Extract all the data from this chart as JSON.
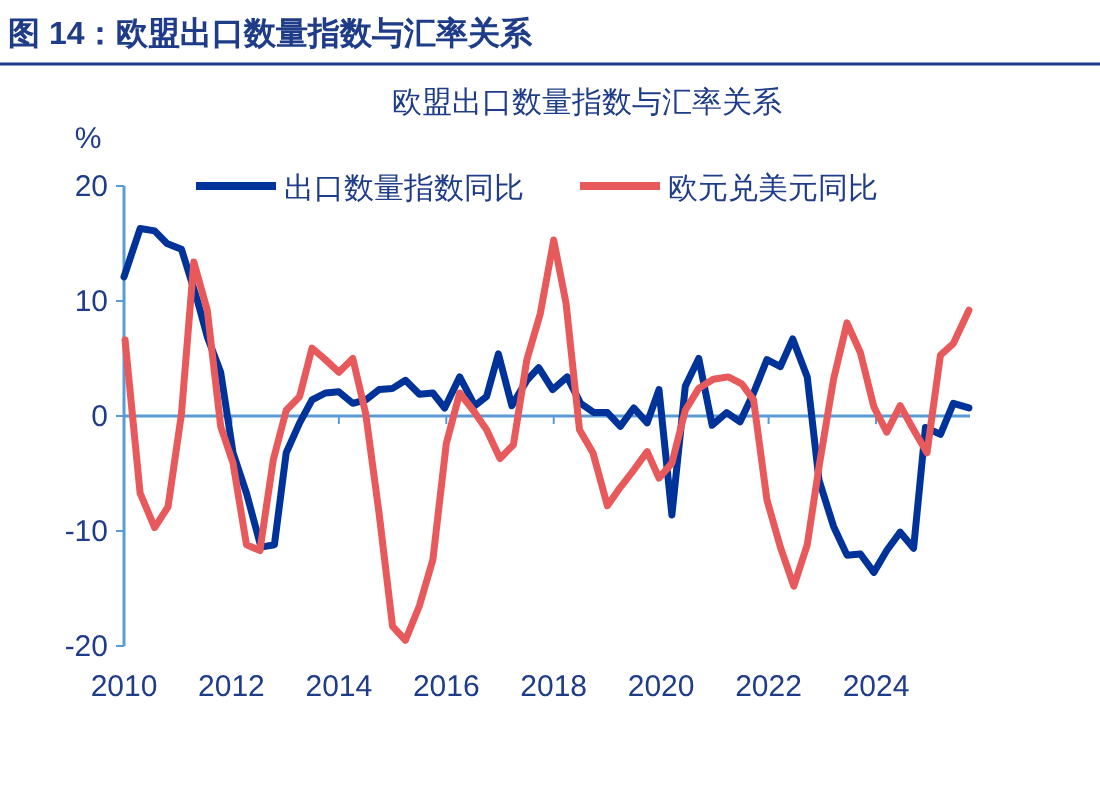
{
  "chart_data": {
    "type": "line",
    "title": "图 14：欧盟出口数量指数与汇率关系",
    "subtitle": "欧盟出口数量指数与汇率关系",
    "ylabel": "%",
    "xlim": [
      2010,
      2025.75
    ],
    "xticks": [
      2010,
      2012,
      2014,
      2016,
      2018,
      2020,
      2022,
      2024
    ],
    "ylim": [
      -20,
      20
    ],
    "yticks": [
      -20,
      -10,
      0,
      10,
      20
    ],
    "grid": false,
    "ref_lines": [
      {
        "axis": "y",
        "value": 0,
        "color": "#5b9bd5"
      }
    ],
    "legend": "top",
    "marker": "none",
    "line_style": "solid",
    "series": [
      {
        "name": "出口数量指数同比",
        "color": "#003399",
        "x": [
          2010.0,
          2010.3,
          2010.57,
          2010.8,
          2011.07,
          2011.37,
          2011.55,
          2011.8,
          2012.03,
          2012.28,
          2012.55,
          2012.8,
          2013.02,
          2013.27,
          2013.5,
          2013.75,
          2014.0,
          2014.26,
          2014.5,
          2014.75,
          2015.0,
          2015.24,
          2015.5,
          2015.75,
          2015.97,
          2016.25,
          2016.53,
          2016.75,
          2016.97,
          2017.22,
          2017.5,
          2017.72,
          2017.98,
          2018.25,
          2018.5,
          2018.75,
          2019.0,
          2019.24,
          2019.49,
          2019.74,
          2019.96,
          2020.2,
          2020.45,
          2020.7,
          2020.95,
          2021.22,
          2021.47,
          2021.72,
          2021.97,
          2022.22,
          2022.45,
          2022.72,
          2022.94,
          2023.21,
          2023.46,
          2023.71,
          2023.96,
          2024.2,
          2024.45,
          2024.7,
          2024.92,
          2025.2,
          2025.44,
          2025.73
        ],
        "values": [
          12.1,
          16.3,
          16.1,
          15.0,
          14.5,
          10,
          6.9,
          3.8,
          -3.2,
          -6.7,
          -11.4,
          -11.2,
          -3.2,
          -0.6,
          1.4,
          2.0,
          2.1,
          1.1,
          1.4,
          2.3,
          2.4,
          3.1,
          1.9,
          2.0,
          0.7,
          3.4,
          0.9,
          1.7,
          5.4,
          0.9,
          3.1,
          4.2,
          2.3,
          3.4,
          1.1,
          0.3,
          0.3,
          -0.9,
          0.7,
          -0.6,
          2.3,
          -8.6,
          2.6,
          5.0,
          -0.8,
          0.3,
          -0.5,
          2.0,
          4.9,
          4.3,
          6.7,
          3.4,
          -5.6,
          -9.6,
          -12.1,
          -12.0,
          -13.6,
          -11.7,
          -10.1,
          -11.5,
          -1.0,
          -1.6,
          1.1,
          0.7
        ]
      },
      {
        "name": "欧元兑美元同比",
        "color": "#e8595b",
        "x": [
          2010.02,
          2010.3,
          2010.57,
          2010.82,
          2011.07,
          2011.3,
          2011.55,
          2011.8,
          2012.03,
          2012.28,
          2012.53,
          2012.78,
          2013.02,
          2013.27,
          2013.5,
          2013.75,
          2014.0,
          2014.26,
          2014.5,
          2014.75,
          2015.0,
          2015.24,
          2015.5,
          2015.75,
          2016.0,
          2016.25,
          2016.5,
          2016.75,
          2017.0,
          2017.25,
          2017.5,
          2017.75,
          2018.0,
          2018.23,
          2018.48,
          2018.73,
          2019.0,
          2019.24,
          2019.49,
          2019.74,
          2019.96,
          2020.2,
          2020.45,
          2020.7,
          2020.97,
          2021.25,
          2021.5,
          2021.72,
          2021.97,
          2022.22,
          2022.47,
          2022.72,
          2022.94,
          2023.21,
          2023.46,
          2023.71,
          2023.96,
          2024.2,
          2024.45,
          2024.7,
          2024.95,
          2025.2,
          2025.44,
          2025.73
        ],
        "values": [
          6.6,
          -6.7,
          -9.7,
          -7.9,
          0.2,
          13.4,
          9.2,
          -0.9,
          -4.1,
          -11.2,
          -11.7,
          -3.8,
          0.5,
          1.7,
          5.9,
          4.9,
          3.8,
          5.0,
          0.2,
          -8.5,
          -18.3,
          -19.5,
          -16.5,
          -12.5,
          -2.4,
          2.0,
          0.5,
          -1.2,
          -3.7,
          -2.5,
          4.9,
          8.9,
          15.3,
          9.8,
          -1.2,
          -3.2,
          -7.8,
          -6.2,
          -4.7,
          -3.1,
          -5.4,
          -4.1,
          0.5,
          2.4,
          3.2,
          3.4,
          2.8,
          1.4,
          -7.3,
          -11.4,
          -14.8,
          -11.2,
          -4.4,
          3.2,
          8.1,
          5.5,
          0.8,
          -1.4,
          0.9,
          -1.2,
          -3.2,
          5.3,
          6.3,
          9.2
        ]
      }
    ]
  }
}
